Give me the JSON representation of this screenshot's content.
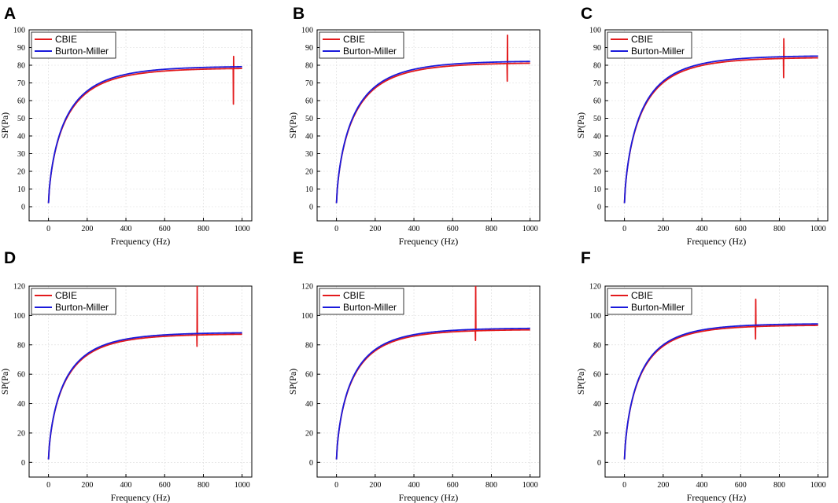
{
  "chart_data": [
    {
      "panel": "A",
      "type": "line",
      "xlabel": "Frequency (Hz)",
      "ylabel": "SP(Pa)",
      "xlim": [
        -100,
        1050
      ],
      "ylim": [
        -8,
        100
      ],
      "xticks": [
        0,
        200,
        400,
        600,
        800,
        1000
      ],
      "yticks": [
        0,
        10,
        20,
        30,
        40,
        50,
        60,
        70,
        80,
        90,
        100
      ],
      "grid": true,
      "legend_position": "top-left",
      "series": [
        {
          "name": "CBIE",
          "color": "#e31a1c",
          "asymptote": 78.5,
          "scale_hz": 95,
          "start": 2,
          "spike_hz": 955,
          "spike_high": 85,
          "spike_low": 58
        },
        {
          "name": "Burton-Miller",
          "color": "#1a1adb",
          "asymptote": 79.5,
          "scale_hz": 95,
          "start": 2
        }
      ]
    },
    {
      "panel": "B",
      "type": "line",
      "xlabel": "Frequency (Hz)",
      "ylabel": "SP(Pa)",
      "xlim": [
        -100,
        1050
      ],
      "ylim": [
        -8,
        100
      ],
      "xticks": [
        0,
        200,
        400,
        600,
        800,
        1000
      ],
      "yticks": [
        0,
        10,
        20,
        30,
        40,
        50,
        60,
        70,
        80,
        90,
        100
      ],
      "grid": true,
      "legend_position": "top-left",
      "series": [
        {
          "name": "CBIE",
          "color": "#e31a1c",
          "asymptote": 81.5,
          "scale_hz": 95,
          "start": 2,
          "spike_hz": 882,
          "spike_high": 97,
          "spike_low": 71
        },
        {
          "name": "Burton-Miller",
          "color": "#1a1adb",
          "asymptote": 82.5,
          "scale_hz": 95,
          "start": 2
        }
      ]
    },
    {
      "panel": "C",
      "type": "line",
      "xlabel": "Frequency (Hz)",
      "ylabel": "SP(Pa)",
      "xlim": [
        -100,
        1050
      ],
      "ylim": [
        -8,
        100
      ],
      "xticks": [
        0,
        200,
        400,
        600,
        800,
        1000
      ],
      "yticks": [
        0,
        10,
        20,
        30,
        40,
        50,
        60,
        70,
        80,
        90,
        100
      ],
      "grid": true,
      "legend_position": "top-left",
      "series": [
        {
          "name": "CBIE",
          "color": "#e31a1c",
          "asymptote": 84.5,
          "scale_hz": 92,
          "start": 2,
          "spike_hz": 822,
          "spike_high": 95,
          "spike_low": 73
        },
        {
          "name": "Burton-Miller",
          "color": "#1a1adb",
          "asymptote": 85.5,
          "scale_hz": 92,
          "start": 2
        }
      ]
    },
    {
      "panel": "D",
      "type": "line",
      "xlabel": "Frequency (Hz)",
      "ylabel": "SP(Pa)",
      "xlim": [
        -100,
        1050
      ],
      "ylim": [
        -10,
        120
      ],
      "xticks": [
        0,
        200,
        400,
        600,
        800,
        1000
      ],
      "yticks": [
        0,
        20,
        40,
        60,
        80,
        100,
        120
      ],
      "grid": true,
      "legend_position": "top-left",
      "series": [
        {
          "name": "CBIE",
          "color": "#e31a1c",
          "asymptote": 87.5,
          "scale_hz": 90,
          "start": 2,
          "spike_hz": 767,
          "spike_high": 120,
          "spike_low": 79
        },
        {
          "name": "Burton-Miller",
          "color": "#1a1adb",
          "asymptote": 88.5,
          "scale_hz": 90,
          "start": 2
        }
      ]
    },
    {
      "panel": "E",
      "type": "line",
      "xlabel": "Frequency (Hz)",
      "ylabel": "SP(Pa)",
      "xlim": [
        -100,
        1050
      ],
      "ylim": [
        -10,
        120
      ],
      "xticks": [
        0,
        200,
        400,
        600,
        800,
        1000
      ],
      "yticks": [
        0,
        20,
        40,
        60,
        80,
        100,
        120
      ],
      "grid": true,
      "legend_position": "top-left",
      "series": [
        {
          "name": "CBIE",
          "color": "#e31a1c",
          "asymptote": 90.5,
          "scale_hz": 88,
          "start": 2,
          "spike_hz": 718,
          "spike_high": 120,
          "spike_low": 83
        },
        {
          "name": "Burton-Miller",
          "color": "#1a1adb",
          "asymptote": 91.5,
          "scale_hz": 88,
          "start": 2
        }
      ]
    },
    {
      "panel": "F",
      "type": "line",
      "xlabel": "Frequency (Hz)",
      "ylabel": "SP(Pa)",
      "xlim": [
        -100,
        1050
      ],
      "ylim": [
        -10,
        120
      ],
      "xticks": [
        0,
        200,
        400,
        600,
        800,
        1000
      ],
      "yticks": [
        0,
        20,
        40,
        60,
        80,
        100,
        120
      ],
      "grid": true,
      "legend_position": "top-left",
      "series": [
        {
          "name": "CBIE",
          "color": "#e31a1c",
          "asymptote": 93.5,
          "scale_hz": 85,
          "start": 2,
          "spike_hz": 677,
          "spike_high": 111,
          "spike_low": 84
        },
        {
          "name": "Burton-Miller",
          "color": "#1a1adb",
          "asymptote": 94.5,
          "scale_hz": 85,
          "start": 2
        }
      ]
    }
  ]
}
